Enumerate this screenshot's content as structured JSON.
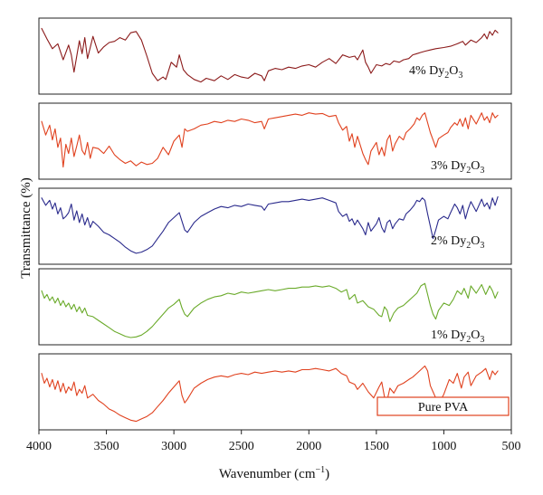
{
  "chart_data": {
    "type": "line",
    "layout": "stacked-panels",
    "xlabel": "Wavenumber (cm",
    "xlabel_sup": "−1",
    "xlabel_close": ")",
    "ylabel": "Transmittance (%)",
    "xlim": [
      4000,
      500
    ],
    "xticks": [
      4000,
      3500,
      3000,
      2500,
      2000,
      1500,
      1000,
      500
    ],
    "series": [
      {
        "name_main": "4% Dy",
        "name_sub1": "2",
        "name_mid": "O",
        "name_sub2": "3",
        "color": "#8b1a1a",
        "label_boxed": false,
        "ylim": [
          0,
          100
        ],
        "x": [
          3980,
          3940,
          3900,
          3860,
          3820,
          3780,
          3760,
          3740,
          3700,
          3680,
          3660,
          3640,
          3600,
          3560,
          3520,
          3480,
          3440,
          3400,
          3360,
          3320,
          3280,
          3240,
          3200,
          3160,
          3120,
          3080,
          3060,
          3020,
          2980,
          2960,
          2930,
          2900,
          2850,
          2800,
          2760,
          2700,
          2650,
          2600,
          2550,
          2500,
          2450,
          2400,
          2350,
          2330,
          2300,
          2250,
          2200,
          2150,
          2100,
          2050,
          2000,
          1950,
          1900,
          1850,
          1800,
          1750,
          1700,
          1660,
          1640,
          1600,
          1580,
          1560,
          1540,
          1500,
          1460,
          1430,
          1400,
          1370,
          1330,
          1300,
          1260,
          1230,
          1200,
          1170,
          1140,
          1100,
          1060,
          1000,
          950,
          900,
          860,
          840,
          800,
          760,
          720,
          700,
          680,
          660,
          640,
          620,
          600
        ],
        "y": [
          95,
          78,
          62,
          70,
          44,
          68,
          52,
          24,
          75,
          54,
          80,
          46,
          82,
          55,
          65,
          72,
          74,
          80,
          76,
          88,
          90,
          76,
          50,
          22,
          10,
          16,
          12,
          40,
          32,
          52,
          28,
          20,
          12,
          8,
          14,
          10,
          18,
          12,
          20,
          16,
          14,
          22,
          18,
          10,
          26,
          30,
          28,
          32,
          30,
          34,
          36,
          32,
          40,
          46,
          38,
          52,
          48,
          50,
          44,
          60,
          40,
          32,
          22,
          36,
          34,
          38,
          36,
          42,
          40,
          44,
          46,
          52,
          54,
          56,
          58,
          60,
          62,
          64,
          66,
          70,
          74,
          68,
          76,
          72,
          80,
          86,
          78,
          90,
          84,
          92,
          88
        ]
      },
      {
        "name_main": "3% Dy",
        "name_sub1": "2",
        "name_mid": "O",
        "name_sub2": "3",
        "color": "#e0411e",
        "label_boxed": false,
        "ylim": [
          0,
          100
        ],
        "x": [
          3980,
          3950,
          3920,
          3900,
          3880,
          3860,
          3840,
          3820,
          3800,
          3780,
          3760,
          3740,
          3720,
          3700,
          3680,
          3660,
          3640,
          3620,
          3600,
          3560,
          3520,
          3480,
          3440,
          3400,
          3360,
          3320,
          3280,
          3240,
          3200,
          3160,
          3120,
          3080,
          3040,
          3000,
          2960,
          2940,
          2920,
          2900,
          2850,
          2800,
          2750,
          2700,
          2650,
          2600,
          2550,
          2500,
          2450,
          2400,
          2350,
          2330,
          2300,
          2250,
          2200,
          2150,
          2100,
          2050,
          2000,
          1950,
          1900,
          1850,
          1800,
          1780,
          1750,
          1720,
          1700,
          1680,
          1660,
          1640,
          1600,
          1580,
          1560,
          1540,
          1500,
          1480,
          1460,
          1440,
          1420,
          1400,
          1380,
          1360,
          1330,
          1300,
          1280,
          1250,
          1220,
          1200,
          1180,
          1160,
          1140,
          1120,
          1100,
          1080,
          1060,
          1040,
          1000,
          970,
          950,
          920,
          900,
          880,
          860,
          840,
          820,
          800,
          760,
          720,
          700,
          680,
          660,
          640,
          620,
          600
        ],
        "y": [
          82,
          60,
          76,
          52,
          70,
          40,
          55,
          8,
          45,
          30,
          55,
          25,
          42,
          60,
          35,
          28,
          48,
          22,
          40,
          38,
          30,
          42,
          28,
          20,
          14,
          18,
          10,
          16,
          12,
          14,
          22,
          40,
          28,
          50,
          60,
          40,
          70,
          66,
          70,
          76,
          78,
          82,
          80,
          84,
          82,
          86,
          84,
          80,
          82,
          70,
          86,
          88,
          90,
          92,
          94,
          92,
          96,
          94,
          95,
          90,
          92,
          80,
          68,
          74,
          50,
          62,
          40,
          58,
          30,
          20,
          12,
          34,
          48,
          28,
          40,
          26,
          52,
          60,
          34,
          46,
          58,
          52,
          64,
          70,
          78,
          88,
          84,
          92,
          96,
          80,
          64,
          52,
          40,
          54,
          60,
          64,
          72,
          80,
          76,
          86,
          74,
          88,
          70,
          92,
          78,
          96,
          84,
          90,
          80,
          96,
          88,
          92
        ]
      },
      {
        "name_main": "2% Dy",
        "name_sub1": "2",
        "name_mid": "O",
        "name_sub2": "3",
        "color": "#2a2a8c",
        "label_boxed": false,
        "ylim": [
          0,
          100
        ],
        "x": [
          3980,
          3950,
          3920,
          3900,
          3880,
          3860,
          3840,
          3820,
          3800,
          3780,
          3760,
          3740,
          3720,
          3700,
          3680,
          3660,
          3640,
          3620,
          3600,
          3560,
          3520,
          3480,
          3440,
          3400,
          3360,
          3320,
          3280,
          3240,
          3200,
          3160,
          3120,
          3080,
          3040,
          3000,
          2960,
          2940,
          2920,
          2900,
          2850,
          2800,
          2750,
          2700,
          2650,
          2600,
          2550,
          2500,
          2450,
          2400,
          2350,
          2330,
          2300,
          2250,
          2200,
          2150,
          2100,
          2050,
          2000,
          1950,
          1900,
          1850,
          1800,
          1780,
          1750,
          1720,
          1700,
          1680,
          1660,
          1640,
          1600,
          1580,
          1560,
          1540,
          1500,
          1480,
          1460,
          1440,
          1420,
          1400,
          1380,
          1360,
          1330,
          1300,
          1280,
          1250,
          1220,
          1200,
          1180,
          1160,
          1140,
          1120,
          1100,
          1080,
          1060,
          1040,
          1000,
          970,
          950,
          920,
          900,
          880,
          860,
          840,
          820,
          800,
          760,
          720,
          700,
          680,
          660,
          640,
          620,
          600
        ],
        "y": [
          96,
          84,
          92,
          78,
          88,
          70,
          80,
          62,
          66,
          72,
          86,
          60,
          75,
          56,
          70,
          52,
          64,
          48,
          58,
          50,
          40,
          36,
          30,
          24,
          16,
          10,
          6,
          8,
          12,
          18,
          30,
          42,
          56,
          64,
          72,
          58,
          44,
          40,
          56,
          66,
          72,
          78,
          82,
          80,
          84,
          82,
          86,
          84,
          82,
          76,
          86,
          88,
          90,
          90,
          92,
          94,
          92,
          94,
          96,
          92,
          88,
          74,
          66,
          70,
          58,
          62,
          52,
          60,
          46,
          36,
          56,
          42,
          54,
          64,
          48,
          40,
          56,
          60,
          46,
          54,
          62,
          60,
          70,
          76,
          84,
          92,
          90,
          96,
          92,
          70,
          50,
          30,
          44,
          60,
          66,
          62,
          72,
          86,
          80,
          70,
          84,
          62,
          78,
          90,
          74,
          94,
          82,
          88,
          78,
          96,
          84,
          98
        ]
      },
      {
        "name_main": "1% Dy",
        "name_sub1": "2",
        "name_mid": "O",
        "name_sub2": "3",
        "color": "#6aaa2a",
        "label_boxed": false,
        "ylim": [
          0,
          100
        ],
        "x": [
          3980,
          3960,
          3940,
          3920,
          3900,
          3880,
          3860,
          3840,
          3820,
          3800,
          3780,
          3760,
          3740,
          3720,
          3700,
          3680,
          3660,
          3640,
          3600,
          3560,
          3520,
          3480,
          3440,
          3400,
          3360,
          3320,
          3280,
          3240,
          3200,
          3160,
          3120,
          3080,
          3040,
          3000,
          2960,
          2940,
          2920,
          2900,
          2850,
          2800,
          2750,
          2700,
          2650,
          2600,
          2550,
          2500,
          2450,
          2400,
          2350,
          2300,
          2250,
          2200,
          2150,
          2100,
          2050,
          2000,
          1950,
          1900,
          1850,
          1800,
          1760,
          1720,
          1700,
          1660,
          1640,
          1600,
          1560,
          1520,
          1480,
          1460,
          1440,
          1420,
          1400,
          1370,
          1340,
          1300,
          1260,
          1230,
          1200,
          1170,
          1140,
          1120,
          1100,
          1080,
          1060,
          1040,
          1000,
          960,
          930,
          900,
          870,
          850,
          820,
          800,
          760,
          720,
          690,
          660,
          640,
          620,
          600
        ],
        "y": [
          76,
          64,
          70,
          60,
          66,
          56,
          64,
          52,
          60,
          50,
          56,
          46,
          54,
          42,
          50,
          40,
          48,
          36,
          34,
          28,
          22,
          16,
          10,
          6,
          2,
          0,
          1,
          4,
          10,
          18,
          28,
          38,
          48,
          54,
          62,
          48,
          38,
          34,
          48,
          56,
          62,
          66,
          68,
          72,
          70,
          74,
          72,
          74,
          76,
          78,
          76,
          78,
          80,
          80,
          82,
          82,
          84,
          82,
          84,
          80,
          74,
          78,
          62,
          70,
          56,
          60,
          50,
          46,
          36,
          34,
          50,
          44,
          26,
          40,
          48,
          52,
          60,
          66,
          72,
          84,
          88,
          70,
          52,
          38,
          30,
          44,
          56,
          52,
          62,
          76,
          70,
          80,
          64,
          84,
          72,
          86,
          70,
          84,
          76,
          64,
          74
        ]
      },
      {
        "name_main": "Pure PVA",
        "name_sub1": "",
        "name_mid": "",
        "name_sub2": "",
        "color": "#e0411e",
        "label_boxed": true,
        "ylim": [
          0,
          100
        ],
        "x": [
          3980,
          3960,
          3940,
          3920,
          3900,
          3880,
          3860,
          3840,
          3820,
          3800,
          3780,
          3760,
          3740,
          3720,
          3700,
          3680,
          3660,
          3640,
          3600,
          3560,
          3520,
          3480,
          3440,
          3400,
          3360,
          3320,
          3280,
          3240,
          3200,
          3160,
          3120,
          3080,
          3040,
          3000,
          2960,
          2940,
          2920,
          2900,
          2850,
          2800,
          2750,
          2700,
          2650,
          2600,
          2550,
          2500,
          2450,
          2400,
          2350,
          2300,
          2250,
          2200,
          2150,
          2100,
          2050,
          2000,
          1950,
          1900,
          1850,
          1800,
          1760,
          1720,
          1700,
          1660,
          1640,
          1600,
          1560,
          1520,
          1480,
          1460,
          1440,
          1420,
          1400,
          1370,
          1340,
          1300,
          1260,
          1230,
          1200,
          1170,
          1140,
          1120,
          1100,
          1080,
          1060,
          1040,
          1000,
          960,
          930,
          900,
          870,
          850,
          820,
          800,
          760,
          720,
          690,
          660,
          640,
          620,
          600
        ],
        "y": [
          80,
          64,
          72,
          58,
          70,
          54,
          68,
          50,
          64,
          48,
          58,
          52,
          66,
          44,
          54,
          48,
          60,
          40,
          46,
          36,
          30,
          22,
          18,
          12,
          8,
          4,
          2,
          6,
          10,
          16,
          26,
          36,
          48,
          58,
          68,
          44,
          32,
          38,
          56,
          64,
          70,
          74,
          76,
          74,
          78,
          80,
          78,
          82,
          80,
          82,
          84,
          82,
          84,
          82,
          86,
          86,
          88,
          86,
          84,
          88,
          80,
          76,
          66,
          62,
          54,
          64,
          50,
          40,
          58,
          66,
          42,
          36,
          56,
          48,
          60,
          64,
          70,
          74,
          80,
          86,
          92,
          84,
          60,
          50,
          40,
          30,
          46,
          70,
          64,
          80,
          56,
          74,
          82,
          60,
          76,
          82,
          88,
          70,
          84,
          78,
          84
        ]
      }
    ]
  }
}
